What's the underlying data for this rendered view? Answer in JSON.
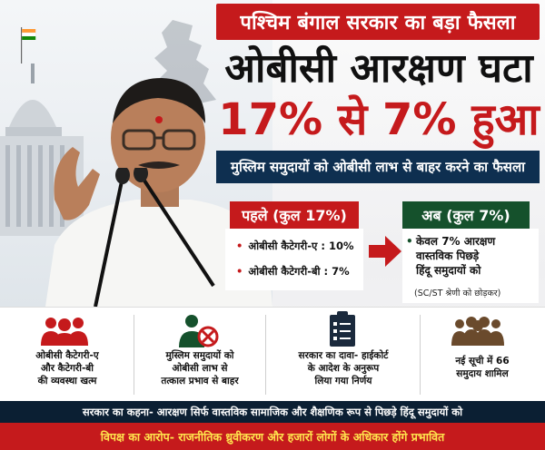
{
  "headline": {
    "banner": "पश्चिम बंगाल सरकार का बड़ा फैसला",
    "line1": "ओबीसी आरक्षण घटा",
    "line2": "17% से 7% हुआ",
    "subtitle": "मुस्लिम समुदायों को ओबीसी लाभ से बाहर करने का फैसला"
  },
  "before": {
    "label": "पहले (कुल 17%)",
    "items": [
      "ओबीसी कैटेगरी-ए : 10%",
      "ओबीसी कैटेगरी-बी : 7%"
    ]
  },
  "after": {
    "label": "अब (कुल 7%)",
    "lines": [
      "केवल 7% आरक्षण",
      "वास्तविक पिछड़े",
      "हिंदू समुदायों को"
    ],
    "note": "(SC/ST श्रेणी को छोड़कर)"
  },
  "info_points": [
    {
      "icon": "people-group-icon",
      "lines": [
        "ओबीसी कैटेगरी-ए",
        "और कैटेगरी-बी",
        "की व्यवस्था खत्म"
      ]
    },
    {
      "icon": "person-cross-icon",
      "lines": [
        "मुस्लिम समुदायों को",
        "ओबीसी लाभ से",
        "तत्काल प्रभाव से बाहर"
      ]
    },
    {
      "icon": "clipboard-checklist-icon",
      "lines": [
        "सरकार का दावा- हाईकोर्ट",
        "के आदेश के अनुरूप",
        "लिया गया निर्णय"
      ]
    },
    {
      "icon": "community-icon",
      "lines": [
        "नई सूची में 66",
        "समुदाय शामिल"
      ]
    }
  ],
  "footer": {
    "govt_statement": "सरकार का कहना- आरक्षण सिर्फ वास्तविक सामाजिक और शैक्षणिक रूप से पिछड़े हिंदू समुदायों को",
    "opposition_statement": "विपक्ष का आरोप- राजनीतिक ध्रुवीकरण और हजारों लोगों के अधिकार होंगे प्रभावित"
  },
  "colors": {
    "red": "#c51a1c",
    "navy": "#0e2f50",
    "green": "#15512c",
    "yellow": "#ffe44d"
  }
}
